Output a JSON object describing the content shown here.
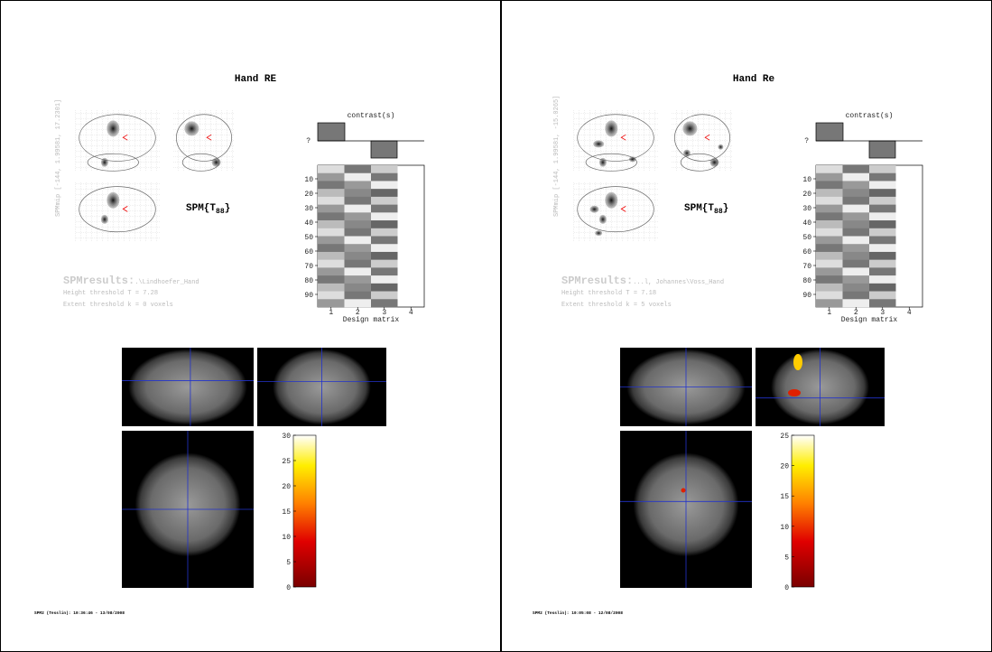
{
  "panels": [
    {
      "title": "Hand RE",
      "contrast_title": "contrast(s)",
      "contrast_y_label": "?",
      "mip_label": "SPMmip [-144, 1.99581, 17.2301]",
      "stat_prefix": "SPM{T",
      "stat_df": "88",
      "stat_suffix": "}",
      "results_label": "SPMresults:",
      "results_path": ".\\Lindhoefer_Hand",
      "height_threshold": "Height threshold T = 7.28",
      "extent_threshold": "Extent threshold k = 0 voxels",
      "design_yticks": [
        10,
        20,
        30,
        40,
        50,
        60,
        70,
        80,
        90
      ],
      "design_xticks": [
        1,
        2,
        3,
        4
      ],
      "design_label": "Design matrix",
      "colorbar_ticks": [
        0,
        5,
        10,
        15,
        20,
        25,
        30
      ],
      "footer": "SPM2 (Tesslin): 10:36:46 - 13/08/2008"
    },
    {
      "title": "Hand Re",
      "contrast_title": "contrast(s)",
      "contrast_y_label": "?",
      "mip_label": "SPMmip [-144, 1.99581, -15.0265]",
      "stat_prefix": "SPM{T",
      "stat_df": "88",
      "stat_suffix": "}",
      "results_label": "SPMresults:",
      "results_path": "...l, Johannes\\Voss_Hand",
      "height_threshold": "Height threshold T = 7.18",
      "extent_threshold": "Extent threshold k = 5 voxels",
      "design_yticks": [
        10,
        20,
        30,
        40,
        50,
        60,
        70,
        80,
        90
      ],
      "design_xticks": [
        1,
        2,
        3,
        4
      ],
      "design_label": "Design matrix",
      "colorbar_ticks": [
        0,
        5,
        10,
        15,
        20,
        25
      ],
      "footer": "SPM2 (Tesslin): 10:05:08 - 12/08/2008"
    }
  ]
}
